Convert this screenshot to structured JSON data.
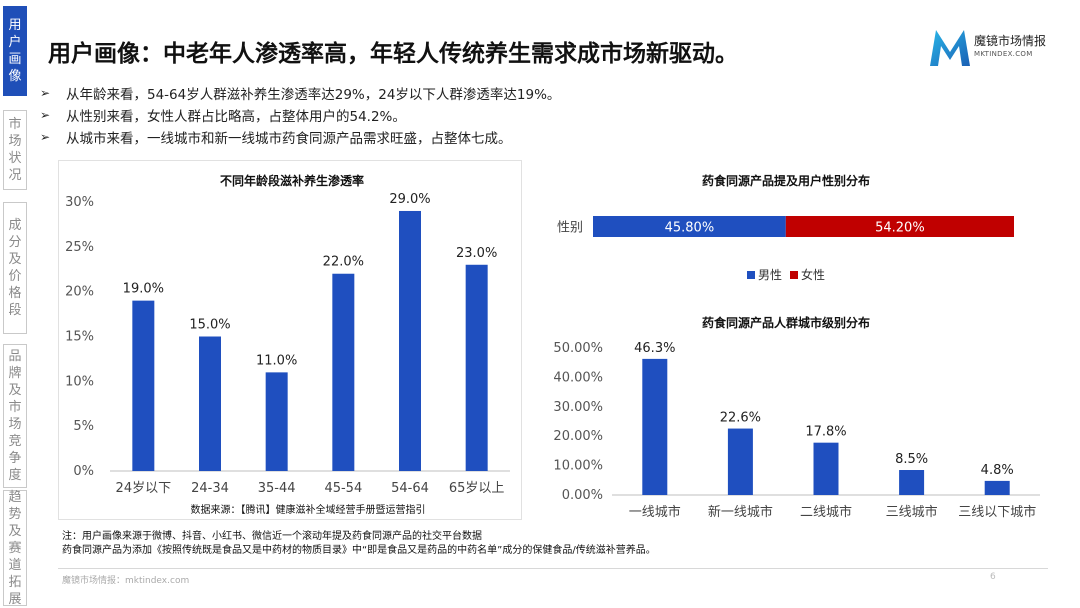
{
  "sidebar": {
    "tabs": [
      {
        "label": "用户画像",
        "active": true
      },
      {
        "label": "市场状况",
        "active": false
      },
      {
        "label": "成分及价格段",
        "active": false
      },
      {
        "label": "品牌及市场竞争度",
        "active": false
      },
      {
        "label": "趋势及赛道拓展",
        "active": false
      }
    ]
  },
  "header": {
    "title": "用户画像：中老年人渗透率高，年轻人传统养生需求成市场新驱动。",
    "logo_text": "魔镜市场情报",
    "logo_sub": "MKTINDEX.COM"
  },
  "bullets": [
    "从年龄来看，54-64岁人群滋补养生渗透率达29%，24岁以下人群渗透率达19%。",
    "从性别来看，女性人群占比略高，占整体用户的54.2%。",
    "从城市来看，一线城市和新一线城市药食同源产品需求旺盛，占整体七成。"
  ],
  "bullet_marker": "➢",
  "chart_data": [
    {
      "type": "bar",
      "title": "不同年龄段滋补养生渗透率",
      "categories": [
        "24岁以下",
        "24-34",
        "35-44",
        "45-54",
        "54-64",
        "65岁以上"
      ],
      "values": [
        19.0,
        15.0,
        11.0,
        22.0,
        29.0,
        23.0
      ],
      "data_labels": [
        "19.0%",
        "15.0%",
        "11.0%",
        "22.0%",
        "29.0%",
        "23.0%"
      ],
      "ylim": [
        0,
        30
      ],
      "yticks": [
        "0%",
        "5%",
        "10%",
        "15%",
        "20%",
        "25%",
        "30%"
      ],
      "grid": false,
      "source": "数据来源：【腾讯】健康滋补全域经营手册暨运营指引",
      "color": "#1f4fbf"
    },
    {
      "type": "bar",
      "orientation": "horizontal-stacked",
      "title": "药食同源产品提及用户性别分布",
      "categories": [
        "性别"
      ],
      "series": [
        {
          "name": "男性",
          "values": [
            45.8
          ],
          "label": "45.80%",
          "color": "#1f4fbf"
        },
        {
          "name": "女性",
          "values": [
            54.2
          ],
          "label": "54.20%",
          "color": "#c00000"
        }
      ],
      "legend": "bottom"
    },
    {
      "type": "bar",
      "title": "药食同源产品人群城市级别分布",
      "categories": [
        "一线城市",
        "新一线城市",
        "二线城市",
        "三线城市",
        "三线以下城市"
      ],
      "values": [
        46.3,
        22.6,
        17.8,
        8.5,
        4.8
      ],
      "data_labels": [
        "46.3%",
        "22.6%",
        "17.8%",
        "8.5%",
        "4.8%"
      ],
      "ylim": [
        0,
        50
      ],
      "yticks": [
        "0.00%",
        "10.00%",
        "20.00%",
        "30.00%",
        "40.00%",
        "50.00%"
      ],
      "grid": false,
      "color": "#1f4fbf"
    }
  ],
  "notes": [
    "注：用户画像来源于微博、抖音、小红书、微信近一个滚动年提及药食同源产品的社交平台数据",
    "药食同源产品为添加《按照传统既是食品又是中药材的物质目录》中“即是食品又是药品的中药名单”成分的保健食品/传统滋补营养品。"
  ],
  "footer": {
    "text": "魔镜市场情报：mktindex.com",
    "page": "6"
  }
}
